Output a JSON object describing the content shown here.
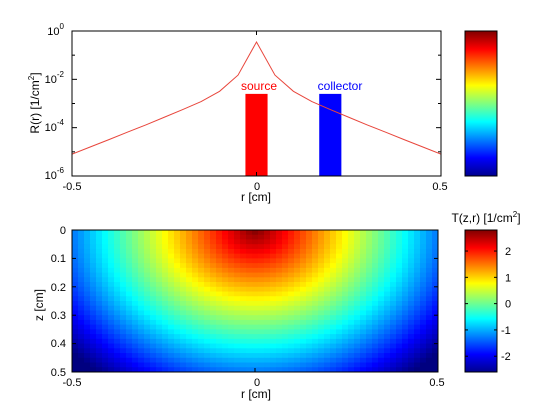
{
  "chart_data": [
    {
      "type": "line",
      "xlabel": "r [cm]",
      "ylabel": "R(r) [1/cm²]",
      "ylabel_base": "R(r) [1/cm",
      "ylabel_sup": "2",
      "ylabel_tail": "]",
      "xlim": [
        -0.5,
        0.5
      ],
      "ylim": [
        1e-06,
        1
      ],
      "yscale": "log",
      "xticks": [
        -0.5,
        0,
        0.5
      ],
      "xtick_labels": [
        "-0.5",
        "0",
        "0.5"
      ],
      "ytick_exponents": [
        "-6",
        "-4",
        "-2",
        "0"
      ],
      "ytick_base": "10",
      "line_color": "#e8463c",
      "series": [
        {
          "x": [
            -0.5,
            -0.45,
            -0.4,
            -0.35,
            -0.3,
            -0.25,
            -0.2,
            -0.15,
            -0.1,
            -0.05,
            0,
            0.05,
            0.1,
            0.15,
            0.2,
            0.25,
            0.3,
            0.35,
            0.4,
            0.45,
            0.5
          ],
          "y": [
            8e-06,
            1.6e-05,
            3.2e-05,
            6.5e-05,
            0.00013,
            0.00027,
            0.00056,
            0.0012,
            0.0032,
            0.015,
            0.35,
            0.015,
            0.0032,
            0.0012,
            0.00056,
            0.00027,
            0.00013,
            6.5e-05,
            3.2e-05,
            1.6e-05,
            8e-06
          ]
        }
      ],
      "annotations": [
        {
          "label": "source",
          "color": "#ff0000",
          "x_range": [
            -0.03,
            0.03
          ],
          "y_top": 0.0025
        },
        {
          "label": "collector",
          "color": "#0000ff",
          "x_range": [
            0.17,
            0.23
          ],
          "y_top": 0.0025
        }
      ],
      "colorbar": {
        "colormap": "jet",
        "tick_labels": []
      }
    },
    {
      "type": "heatmap",
      "title": "T(z,r) [1/cm²]",
      "title_base": "T(z,r) [1/cm",
      "title_sup": "2",
      "title_tail": "]",
      "xlabel": "r [cm]",
      "ylabel": "z [cm]",
      "xlim": [
        -0.5,
        0.5
      ],
      "ylim": [
        0,
        0.5
      ],
      "y_axis_direction": "down",
      "xticks": [
        -0.5,
        0,
        0.5
      ],
      "xtick_labels": [
        "-0.5",
        "0",
        "0.5"
      ],
      "yticks": [
        0,
        0.1,
        0.2,
        0.3,
        0.4,
        0.5
      ],
      "ytick_labels": [
        "0",
        "0.1",
        "0.2",
        "0.3",
        "0.4",
        "0.5"
      ],
      "colormap": "jet",
      "value_field": "log10 T, approx. 2.8 at (r=0, z=0) decreasing radially to about -2.6 toward the corners",
      "color_range": [
        -2.6,
        2.8
      ],
      "colorbar_ticks": [
        -2,
        -1,
        0,
        1,
        2
      ],
      "colorbar_tick_labels": [
        "-2",
        "-1",
        "0",
        "1",
        "2"
      ],
      "peak_value": 2.8,
      "decay_per_cm": 8.2
    }
  ]
}
